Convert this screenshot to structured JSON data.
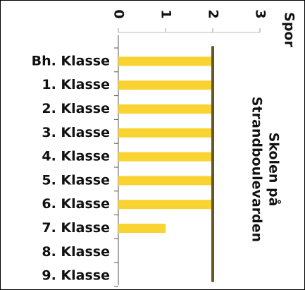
{
  "chart_data": {
    "type": "bar",
    "orientation": "horizontal",
    "title": [
      "Skolen på",
      "Strandboulevarden"
    ],
    "x_label": "Spor",
    "categories": [
      "Bh. Klasse",
      "1. Klasse",
      "2. Klasse",
      "3. Klasse",
      "4. Klasse",
      "5. Klasse",
      "6. Klasse",
      "7. Klasse",
      "8. Klasse",
      "9. Klasse"
    ],
    "values": [
      2,
      2,
      2,
      2,
      2,
      2,
      2,
      1,
      0,
      0
    ],
    "color": "#f8d332",
    "reference_line": {
      "value": 2,
      "color": "#6b5620"
    },
    "xlim": [
      0,
      3
    ],
    "xticks": [
      0,
      1,
      2,
      3
    ]
  }
}
